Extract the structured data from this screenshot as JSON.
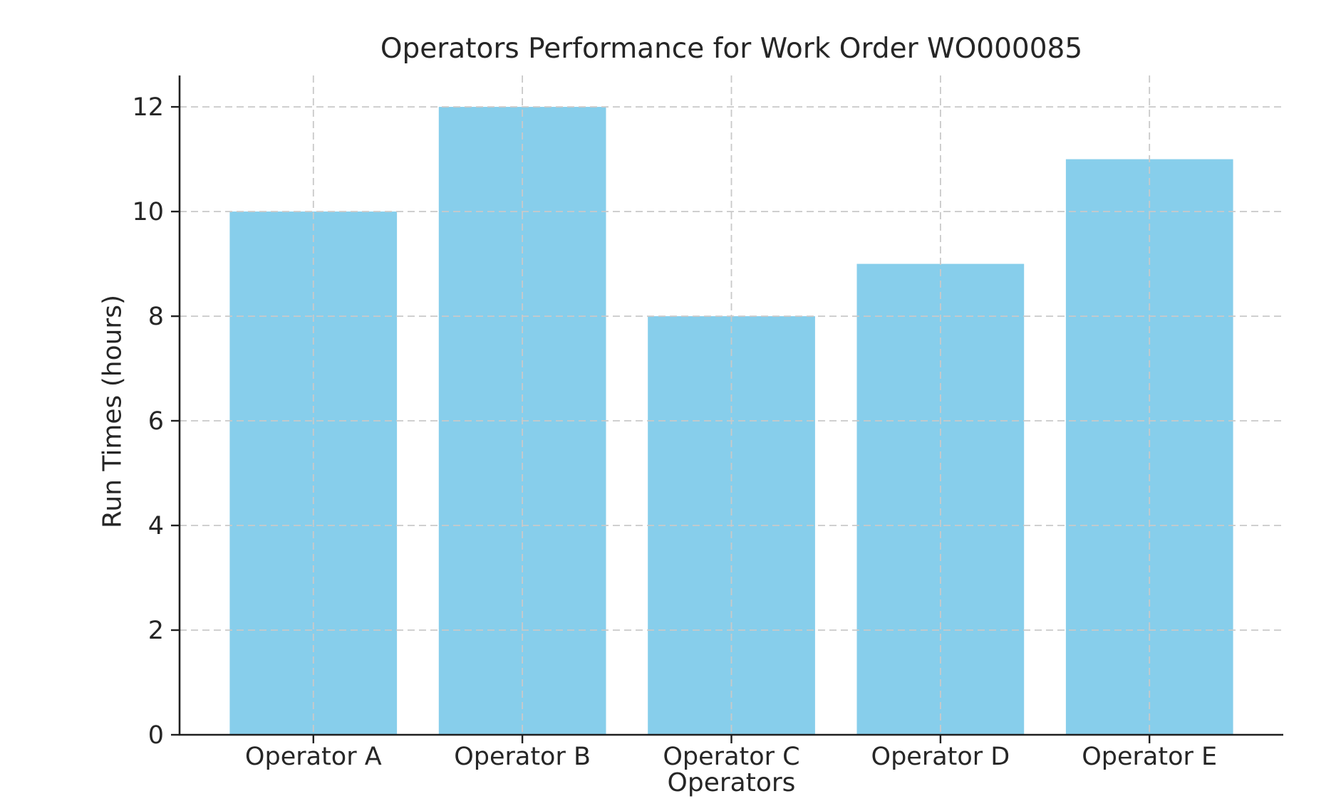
{
  "chart_data": {
    "type": "bar",
    "title": "Operators Performance for Work Order WO000085",
    "xlabel": "Operators",
    "ylabel": "Run Times (hours)",
    "categories": [
      "Operator A",
      "Operator B",
      "Operator C",
      "Operator D",
      "Operator E"
    ],
    "values": [
      10,
      12,
      8,
      9,
      11
    ],
    "ylim": [
      0,
      12.6
    ],
    "yticks": [
      0,
      2,
      4,
      6,
      8,
      10,
      12
    ],
    "bar_color": "#87ceeb",
    "grid": {
      "show": true,
      "style": "dashed",
      "axes": "both",
      "color": "#c9c9c9",
      "on_top_of_bars": true
    },
    "axis_color": "#1f1f1f",
    "text_color": "#262626",
    "background_color": "#ffffff",
    "legend": null
  }
}
